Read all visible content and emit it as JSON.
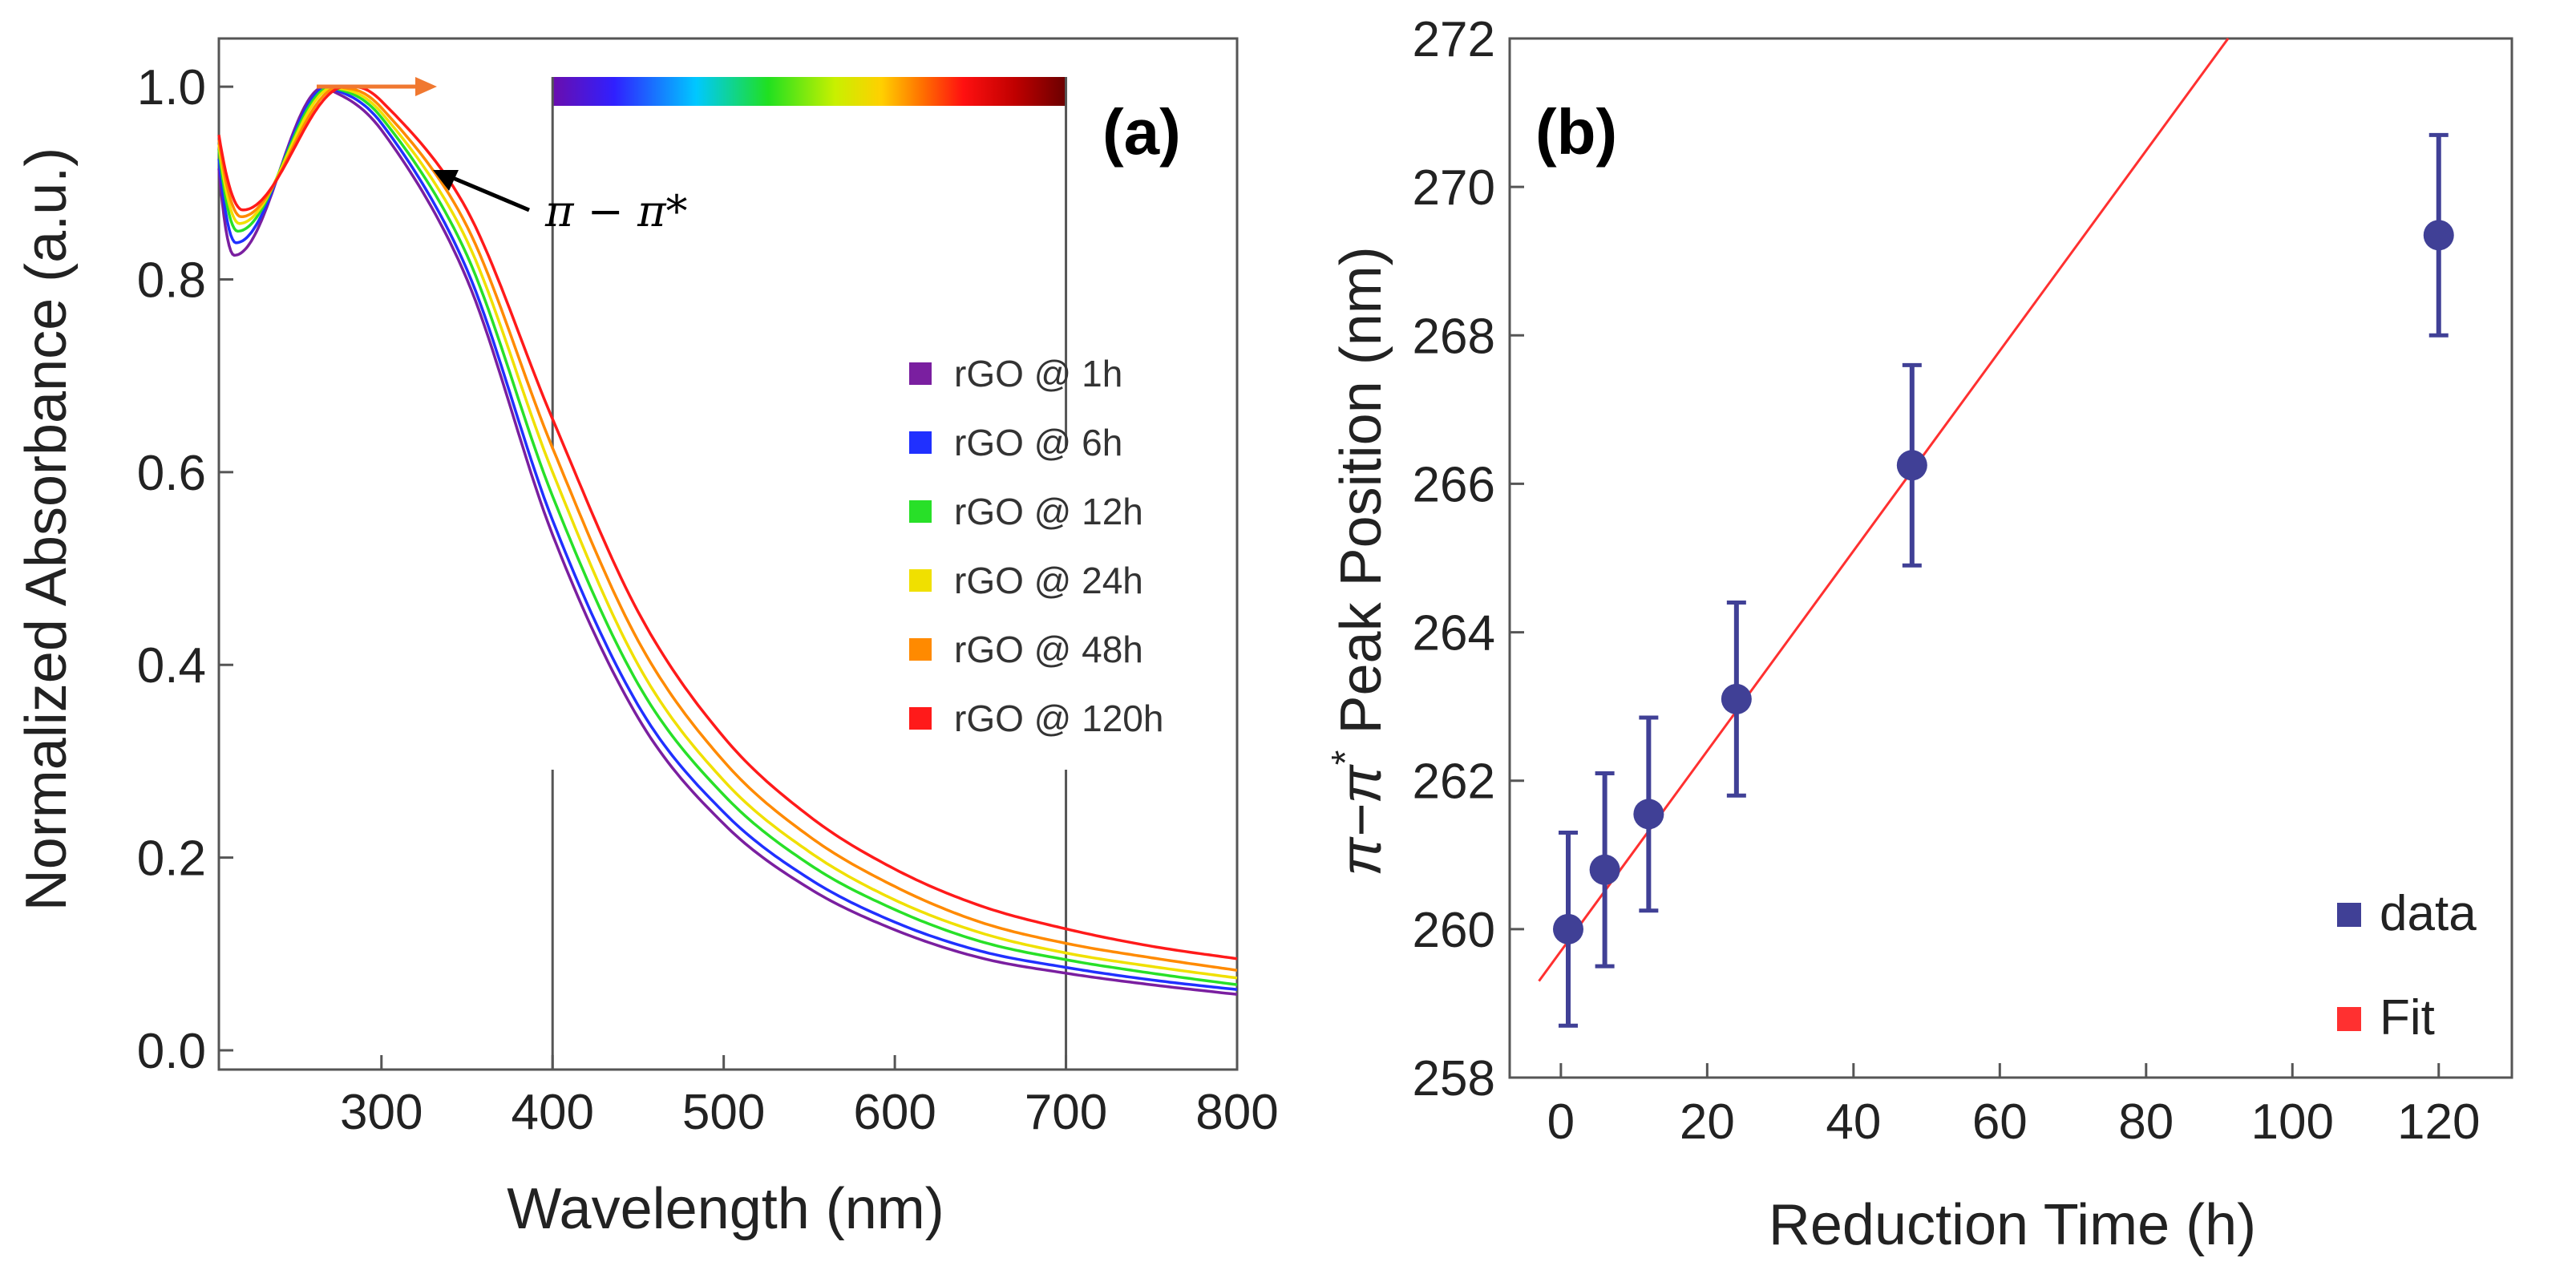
{
  "colors": {
    "rGO_1h": "#7a1fa0",
    "rGO_6h": "#2030ff",
    "rGO_12h": "#28e028",
    "rGO_24h": "#f0e000",
    "rGO_48h": "#ff8a00",
    "rGO_120h": "#ff1a1a",
    "data_marker": "#404096",
    "fit_line": "#ff3030",
    "arrow_orange": "#f07830"
  },
  "chart_data": [
    {
      "type": "line",
      "panel": "(a)",
      "xlabel": "Wavelength (nm)",
      "ylabel": "Normalized Absorbance (a.u.)",
      "xlim": [
        205,
        800
      ],
      "ylim": [
        -0.02,
        1.05
      ],
      "xticks": [
        "300",
        "400",
        "500",
        "600",
        "700",
        "800"
      ],
      "yticks": [
        "0.0",
        "0.2",
        "0.4",
        "0.6",
        "0.8",
        "1.0"
      ],
      "vlines": [
        400,
        700
      ],
      "spectrum_bar": {
        "from": 400,
        "to": 700
      },
      "annotation": "π − π*",
      "series": [
        {
          "name": "rGO @ 1h",
          "color": "#7a1fa0",
          "peak": 267,
          "min_wl": 214,
          "min_val": 0.825,
          "start": 0.915,
          "points": [
            [
              300,
              0.955
            ],
            [
              350,
              0.8
            ],
            [
              400,
              0.535
            ],
            [
              450,
              0.345
            ],
            [
              500,
              0.235
            ],
            [
              550,
              0.168
            ],
            [
              600,
              0.125
            ],
            [
              650,
              0.096
            ],
            [
              700,
              0.08
            ],
            [
              750,
              0.068
            ],
            [
              800,
              0.058
            ]
          ]
        },
        {
          "name": "rGO @ 6h",
          "color": "#2030ff",
          "peak": 269,
          "min_wl": 215,
          "min_val": 0.838,
          "start": 0.925,
          "points": [
            [
              300,
              0.962
            ],
            [
              350,
              0.81
            ],
            [
              400,
              0.55
            ],
            [
              450,
              0.358
            ],
            [
              500,
              0.247
            ],
            [
              550,
              0.178
            ],
            [
              600,
              0.133
            ],
            [
              650,
              0.103
            ],
            [
              700,
              0.086
            ],
            [
              750,
              0.073
            ],
            [
              800,
              0.063
            ]
          ]
        },
        {
          "name": "rGO @ 12h",
          "color": "#28e028",
          "peak": 271,
          "min_wl": 216,
          "min_val": 0.85,
          "start": 0.935,
          "points": [
            [
              300,
              0.968
            ],
            [
              350,
              0.825
            ],
            [
              400,
              0.575
            ],
            [
              450,
              0.38
            ],
            [
              500,
              0.265
            ],
            [
              550,
              0.193
            ],
            [
              600,
              0.146
            ],
            [
              650,
              0.113
            ],
            [
              700,
              0.094
            ],
            [
              750,
              0.08
            ],
            [
              800,
              0.068
            ]
          ]
        },
        {
          "name": "rGO @ 24h",
          "color": "#f0e000",
          "peak": 273,
          "min_wl": 217,
          "min_val": 0.858,
          "start": 0.94,
          "points": [
            [
              300,
              0.973
            ],
            [
              350,
              0.84
            ],
            [
              400,
              0.6
            ],
            [
              450,
              0.4
            ],
            [
              500,
              0.28
            ],
            [
              550,
              0.206
            ],
            [
              600,
              0.156
            ],
            [
              650,
              0.122
            ],
            [
              700,
              0.101
            ],
            [
              750,
              0.087
            ],
            [
              800,
              0.075
            ]
          ]
        },
        {
          "name": "rGO @ 48h",
          "color": "#ff8a00",
          "peak": 276,
          "min_wl": 218,
          "min_val": 0.865,
          "start": 0.945,
          "points": [
            [
              300,
              0.978
            ],
            [
              350,
              0.855
            ],
            [
              400,
              0.625
            ],
            [
              450,
              0.425
            ],
            [
              500,
              0.3
            ],
            [
              550,
              0.222
            ],
            [
              600,
              0.17
            ],
            [
              650,
              0.133
            ],
            [
              700,
              0.111
            ],
            [
              750,
              0.096
            ],
            [
              800,
              0.083
            ]
          ]
        },
        {
          "name": "rGO @ 120h",
          "color": "#ff1a1a",
          "peak": 279,
          "min_wl": 219,
          "min_val": 0.872,
          "start": 0.95,
          "points": [
            [
              300,
              0.985
            ],
            [
              350,
              0.872
            ],
            [
              400,
              0.655
            ],
            [
              450,
              0.455
            ],
            [
              500,
              0.325
            ],
            [
              550,
              0.243
            ],
            [
              600,
              0.188
            ],
            [
              650,
              0.15
            ],
            [
              700,
              0.126
            ],
            [
              750,
              0.108
            ],
            [
              800,
              0.095
            ]
          ]
        }
      ]
    },
    {
      "type": "scatter",
      "panel": "(b)",
      "xlabel": "Reduction Time (h)",
      "ylabel_prefix": "π−π",
      "ylabel_sup": "*",
      "ylabel_suffix": " Peak Position (nm)",
      "xlim": [
        -7,
        130
      ],
      "ylim": [
        258,
        272
      ],
      "xticks": [
        "0",
        "20",
        "40",
        "60",
        "80",
        "100",
        "120"
      ],
      "yticks": [
        "258",
        "260",
        "262",
        "264",
        "266",
        "268",
        "270",
        "272"
      ],
      "legend": [
        "data",
        "Fit"
      ],
      "series": [
        {
          "name": "data",
          "x": [
            1,
            6,
            12,
            24,
            48,
            120
          ],
          "y": [
            260.0,
            260.8,
            261.55,
            263.1,
            266.25,
            269.35
          ],
          "err": [
            1.3,
            1.3,
            1.3,
            1.3,
            1.35,
            1.35
          ]
        },
        {
          "name": "Fit",
          "x0": -3,
          "y0": 259.3,
          "slope": 0.1348
        }
      ]
    }
  ]
}
